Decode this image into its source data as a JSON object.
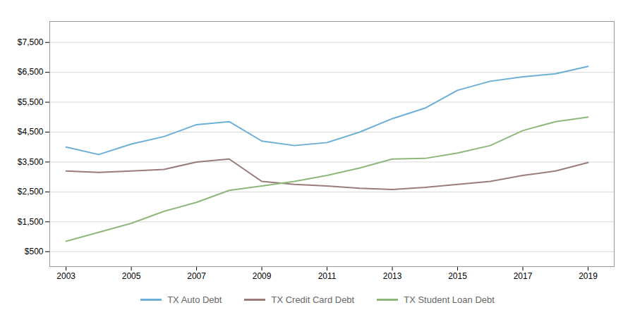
{
  "chart_data": {
    "type": "line",
    "x": [
      2003,
      2004,
      2005,
      2006,
      2007,
      2008,
      2009,
      2010,
      2011,
      2012,
      2013,
      2014,
      2015,
      2016,
      2017,
      2018,
      2019
    ],
    "series": [
      {
        "name": "TX Auto Debt",
        "color": "#6BAED6",
        "values": [
          4000,
          3750,
          4100,
          4350,
          4750,
          4850,
          4200,
          4050,
          4150,
          4500,
          4950,
          5300,
          5900,
          6200,
          6350,
          6450,
          6700
        ]
      },
      {
        "name": "TX Credit Card Debt",
        "color": "#9C7B7B",
        "values": [
          3200,
          3150,
          3200,
          3250,
          3500,
          3600,
          2850,
          2750,
          2700,
          2620,
          2580,
          2650,
          2750,
          2850,
          3050,
          3200,
          3480
        ]
      },
      {
        "name": "TX Student Loan Debt",
        "color": "#8DB87A",
        "values": [
          850,
          1150,
          1450,
          1850,
          2150,
          2550,
          2700,
          2850,
          3050,
          3300,
          3600,
          3620,
          3800,
          4050,
          4550,
          4850,
          5000
        ]
      }
    ],
    "xlim": [
      2002.5,
      2019.8
    ],
    "xticks": [
      2003,
      2005,
      2007,
      2009,
      2011,
      2013,
      2015,
      2017,
      2019
    ],
    "ylim": [
      0,
      8200
    ],
    "yticks": [
      {
        "value": 500,
        "label": "$500"
      },
      {
        "value": 1500,
        "label": "$1,500"
      },
      {
        "value": 2500,
        "label": "$2,500"
      },
      {
        "value": 3500,
        "label": "$3,500"
      },
      {
        "value": 4500,
        "label": "$4,500"
      },
      {
        "value": 5500,
        "label": "$5,500"
      },
      {
        "value": 6500,
        "label": "$6,500"
      },
      {
        "value": 7500,
        "label": "$7,500"
      }
    ],
    "grid": true,
    "legend": "bottom"
  }
}
